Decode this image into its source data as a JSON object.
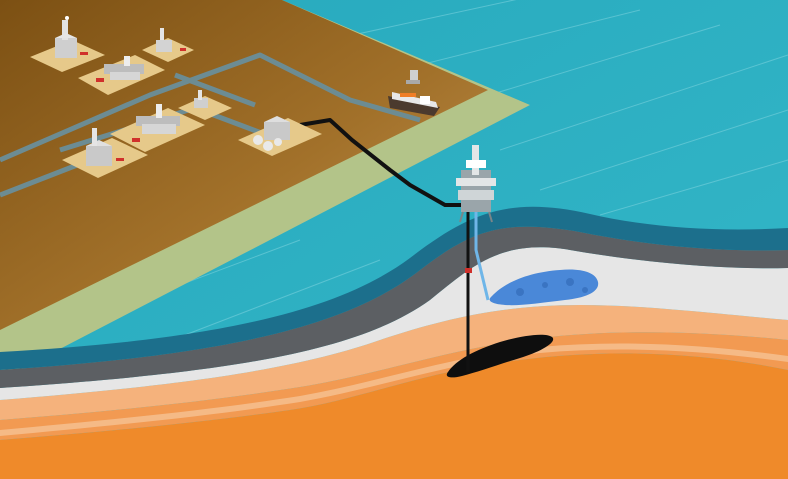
{
  "diagram": {
    "description_free": true,
    "colors": {
      "sea": "#2fb3c4",
      "land_dark": "#8a5a16",
      "land_light": "#c8a060",
      "coastal_strip": "#b9c98d",
      "rock_dark_teal": "#1c6f8c",
      "rock_gray": "#5c5f63",
      "rock_light": "#e6e6e6",
      "sand_light": "#f5b27c",
      "sand_mid": "#f29a52",
      "sand_deep": "#ef8a2a",
      "pipeline_gas": "#6c8c93",
      "pipeline_oil": "#111111",
      "gas_reservoir": "#4a88d8",
      "oil_reservoir": "#0e0e0e",
      "facility": "#c9c9c9"
    },
    "icons": [
      "facility-plant-icon",
      "tanker-ship-icon",
      "offshore-platform-icon",
      "gas-reservoir-icon",
      "oil-reservoir-icon"
    ]
  }
}
